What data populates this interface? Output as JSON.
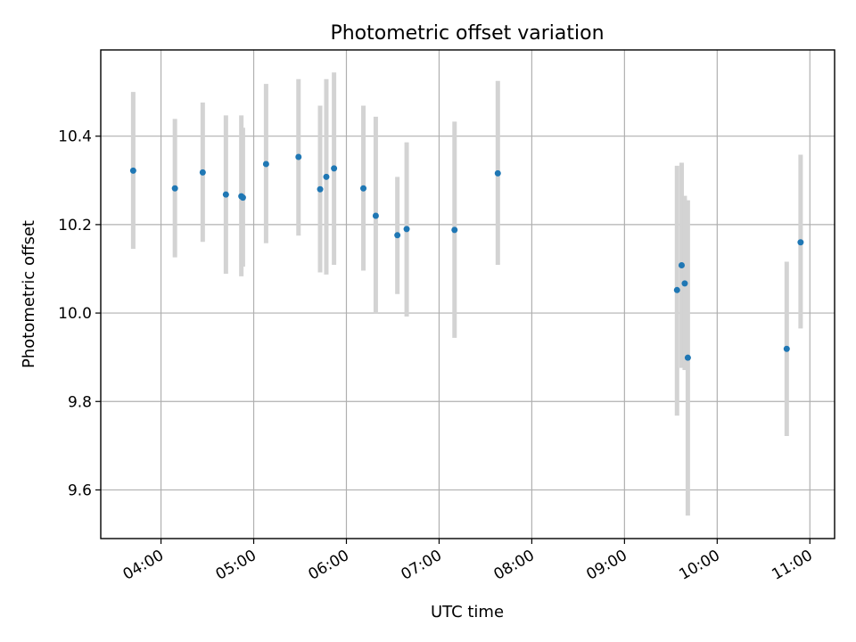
{
  "chart_data": {
    "type": "scatter",
    "title": "Photometric offset variation",
    "xlabel": "UTC time",
    "ylabel": "Photometric offset",
    "grid": true,
    "xlim": [
      "03:21",
      "11:16"
    ],
    "ylim": [
      9.49,
      10.595
    ],
    "xticks": [
      "04:00",
      "05:00",
      "06:00",
      "07:00",
      "08:00",
      "09:00",
      "10:00",
      "11:00"
    ],
    "yticks": [
      "9.6",
      "9.8",
      "10.0",
      "10.2",
      "10.4"
    ],
    "point_color": "#1f77b4",
    "errorbar_color": "#d3d3d3",
    "points": [
      {
        "x": "03:42",
        "y": 10.322,
        "lo": 10.145,
        "hi": 10.5
      },
      {
        "x": "04:09",
        "y": 10.282,
        "lo": 10.126,
        "hi": 10.439
      },
      {
        "x": "04:27",
        "y": 10.318,
        "lo": 10.161,
        "hi": 10.476
      },
      {
        "x": "04:42",
        "y": 10.268,
        "lo": 10.089,
        "hi": 10.447
      },
      {
        "x": "04:52",
        "y": 10.264,
        "lo": 10.083,
        "hi": 10.447
      },
      {
        "x": "04:53",
        "y": 10.261,
        "lo": 10.105,
        "hi": 10.419
      },
      {
        "x": "05:08",
        "y": 10.337,
        "lo": 10.158,
        "hi": 10.518
      },
      {
        "x": "05:29",
        "y": 10.353,
        "lo": 10.175,
        "hi": 10.529
      },
      {
        "x": "05:43",
        "y": 10.28,
        "lo": 10.092,
        "hi": 10.469
      },
      {
        "x": "05:47",
        "y": 10.308,
        "lo": 10.087,
        "hi": 10.529
      },
      {
        "x": "05:52",
        "y": 10.327,
        "lo": 10.109,
        "hi": 10.544
      },
      {
        "x": "06:11",
        "y": 10.282,
        "lo": 10.096,
        "hi": 10.469
      },
      {
        "x": "06:19",
        "y": 10.22,
        "lo": 10.0,
        "hi": 10.444
      },
      {
        "x": "06:33",
        "y": 10.176,
        "lo": 10.043,
        "hi": 10.308
      },
      {
        "x": "06:39",
        "y": 10.19,
        "lo": 9.992,
        "hi": 10.386
      },
      {
        "x": "07:10",
        "y": 10.188,
        "lo": 9.944,
        "hi": 10.433
      },
      {
        "x": "07:38",
        "y": 10.316,
        "lo": 10.109,
        "hi": 10.525
      },
      {
        "x": "09:34",
        "y": 10.052,
        "lo": 9.768,
        "hi": 10.333
      },
      {
        "x": "09:37",
        "y": 10.108,
        "lo": 9.876,
        "hi": 10.34
      },
      {
        "x": "09:39",
        "y": 10.067,
        "lo": 9.871,
        "hi": 10.265
      },
      {
        "x": "09:41",
        "y": 9.899,
        "lo": 9.542,
        "hi": 10.255
      },
      {
        "x": "10:45",
        "y": 9.919,
        "lo": 9.722,
        "hi": 10.116
      },
      {
        "x": "10:54",
        "y": 10.16,
        "lo": 9.965,
        "hi": 10.358
      }
    ]
  }
}
